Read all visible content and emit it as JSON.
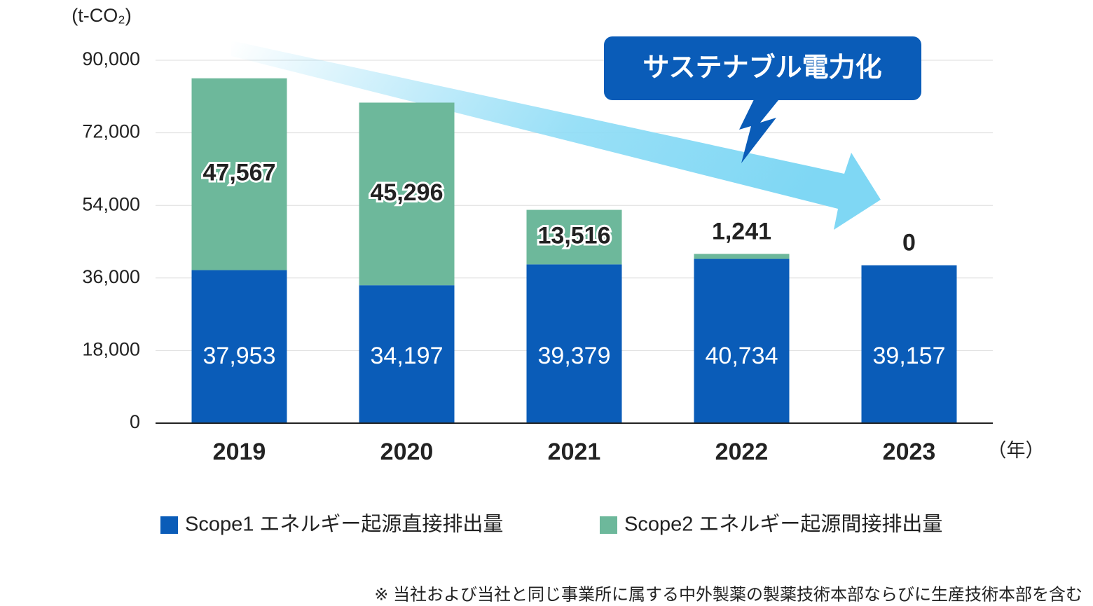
{
  "chart_data": {
    "type": "stacked-bar",
    "y_label": "(t-CO₂)",
    "x_label": "（年）",
    "annotation": "サステナブル電力化",
    "footnote": "※ 当社および当社と同じ事業所に属する中外製薬の製薬技術本部ならびに生産技術本部を含む",
    "categories": [
      "2019",
      "2020",
      "2021",
      "2022",
      "2023"
    ],
    "series": [
      {
        "name": "Scope1 エネルギー起源直接排出量",
        "color": "#0a5cb8",
        "values": [
          37953,
          34197,
          39379,
          40734,
          39157
        ],
        "value_labels": [
          "37,953",
          "34,197",
          "39,379",
          "40,734",
          "39,157"
        ]
      },
      {
        "name": "Scope2 エネルギー起源間接排出量",
        "color": "#6db89b",
        "values": [
          47567,
          45296,
          13516,
          1241,
          0
        ],
        "value_labels": [
          "47,567",
          "45,296",
          "13,516",
          "1,241",
          "0"
        ]
      }
    ],
    "ylim": [
      0,
      90000
    ],
    "yticks": [
      0,
      {
        "value": 18000,
        "label": "18,000"
      },
      {
        "value": 36000,
        "label": "36,000"
      },
      {
        "value": 54000,
        "label": "54,000"
      },
      {
        "value": 72000,
        "label": "72,000"
      },
      {
        "value": 90000,
        "label": "90,000"
      }
    ],
    "grid": true
  }
}
